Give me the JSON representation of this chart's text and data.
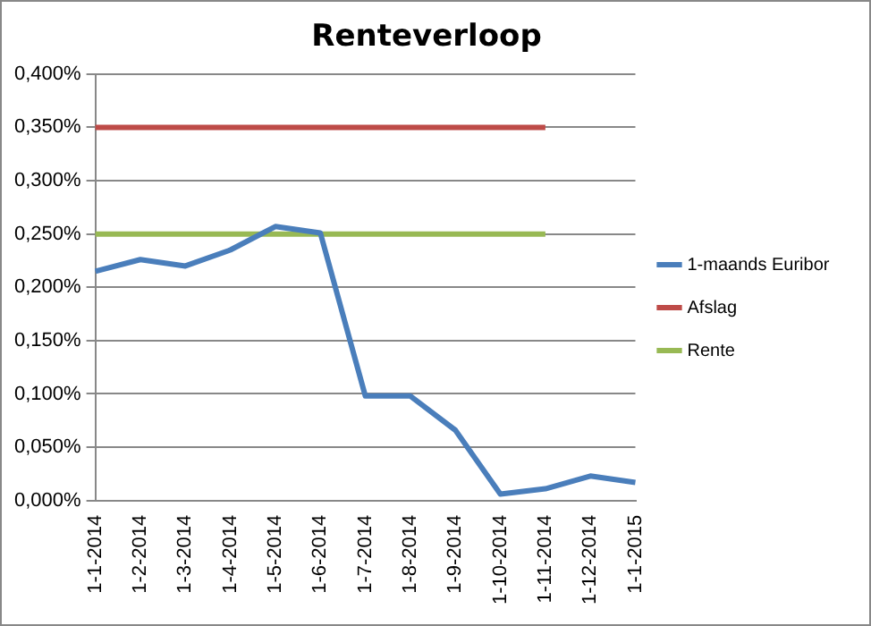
{
  "chart_data": {
    "type": "line",
    "title": "Renteverloop",
    "categories": [
      "1-1-2014",
      "1-2-2014",
      "1-3-2014",
      "1-4-2014",
      "1-5-2014",
      "1-6-2014",
      "1-7-2014",
      "1-8-2014",
      "1-9-2014",
      "1-10-2014",
      "1-11-2014",
      "1-12-2014",
      "1-1-2015"
    ],
    "series": [
      {
        "name": "1-maands Euribor",
        "color": "#4a7ebb",
        "values": [
          0.215,
          0.226,
          0.22,
          0.235,
          0.257,
          0.251,
          0.098,
          0.098,
          0.066,
          0.006,
          0.011,
          0.023,
          0.017
        ]
      },
      {
        "name": "Afslag",
        "color": "#be4b48",
        "values": [
          0.35,
          0.35,
          0.35,
          0.35,
          0.35,
          0.35,
          0.35,
          0.35,
          0.35,
          0.35,
          0.35,
          null,
          null
        ]
      },
      {
        "name": "Rente",
        "color": "#98b954",
        "values": [
          0.25,
          0.25,
          0.25,
          0.25,
          0.25,
          0.25,
          0.25,
          0.25,
          0.25,
          0.25,
          0.25,
          null,
          null
        ]
      }
    ],
    "ylim": [
      0,
      0.4
    ],
    "yticks": [
      {
        "value": 0,
        "label": "0,000%"
      },
      {
        "value": 0.05,
        "label": "0,050%"
      },
      {
        "value": 0.1,
        "label": "0,100%"
      },
      {
        "value": 0.15,
        "label": "0,150%"
      },
      {
        "value": 0.2,
        "label": "0,200%"
      },
      {
        "value": 0.25,
        "label": "0,250%"
      },
      {
        "value": 0.3,
        "label": "0,300%"
      },
      {
        "value": 0.35,
        "label": "0,350%"
      },
      {
        "value": 0.4,
        "label": "0,400%"
      }
    ],
    "grid": "y",
    "legend": "right",
    "marker": "none",
    "line_style": "solid"
  }
}
